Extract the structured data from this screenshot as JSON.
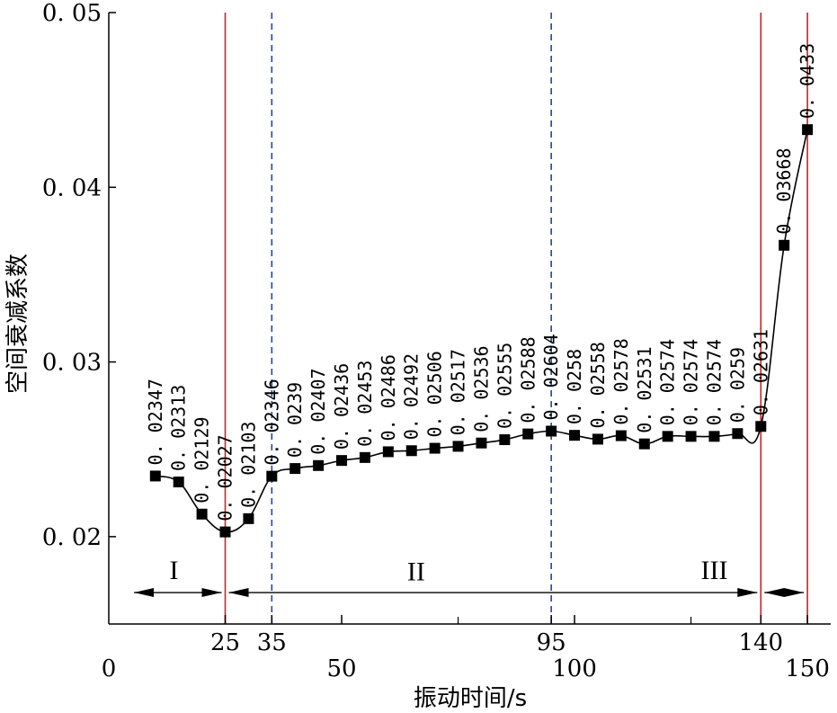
{
  "chart_data": {
    "type": "line",
    "title": "",
    "xlabel": "振动时间/s",
    "ylabel": "空间衰减系数",
    "xlim": [
      0,
      155
    ],
    "ylim": [
      0.015,
      0.05
    ],
    "grid": false,
    "x_ticks": [
      {
        "value": 0,
        "label": "0",
        "row": "lower"
      },
      {
        "value": 25,
        "label": "25",
        "row": "upper"
      },
      {
        "value": 35,
        "label": "35",
        "row": "upper"
      },
      {
        "value": 50,
        "label": "50",
        "row": "lower"
      },
      {
        "value": 95,
        "label": "95",
        "row": "upper"
      },
      {
        "value": 100,
        "label": "100",
        "row": "lower"
      },
      {
        "value": 140,
        "label": "140",
        "row": "upper"
      },
      {
        "value": 150,
        "label": "150",
        "row": "lower"
      }
    ],
    "x_minor_ticks": [
      75,
      125
    ],
    "y_ticks": [
      {
        "value": 0.02,
        "label": "0. 02"
      },
      {
        "value": 0.03,
        "label": "0. 03"
      },
      {
        "value": 0.04,
        "label": "0. 04"
      },
      {
        "value": 0.05,
        "label": "0. 05"
      }
    ],
    "series": [
      {
        "points": [
          {
            "x": 10,
            "y": 0.02347,
            "label": "0. 02347"
          },
          {
            "x": 15,
            "y": 0.02313,
            "label": "0. 02313"
          },
          {
            "x": 20,
            "y": 0.02129,
            "label": "0. 02129"
          },
          {
            "x": 25,
            "y": 0.02027,
            "label": "0. 02027"
          },
          {
            "x": 30,
            "y": 0.02103,
            "label": "0. 02103"
          },
          {
            "x": 35,
            "y": 0.02346,
            "label": "0. 02346"
          },
          {
            "x": 40,
            "y": 0.0239,
            "label": "0. 0239"
          },
          {
            "x": 45,
            "y": 0.02407,
            "label": "0. 02407"
          },
          {
            "x": 50,
            "y": 0.02436,
            "label": "0. 02436"
          },
          {
            "x": 55,
            "y": 0.02453,
            "label": "0. 02453"
          },
          {
            "x": 60,
            "y": 0.02486,
            "label": "0. 02486"
          },
          {
            "x": 65,
            "y": 0.02492,
            "label": "0. 02492"
          },
          {
            "x": 70,
            "y": 0.02506,
            "label": "0. 02506"
          },
          {
            "x": 75,
            "y": 0.02517,
            "label": "0. 02517"
          },
          {
            "x": 80,
            "y": 0.02536,
            "label": "0. 02536"
          },
          {
            "x": 85,
            "y": 0.02555,
            "label": "0. 02555"
          },
          {
            "x": 90,
            "y": 0.02588,
            "label": "0. 02588"
          },
          {
            "x": 95,
            "y": 0.02604,
            "label": "0. 02604"
          },
          {
            "x": 100,
            "y": 0.0258,
            "label": "0. 0258"
          },
          {
            "x": 105,
            "y": 0.02558,
            "label": "0. 02558"
          },
          {
            "x": 110,
            "y": 0.02578,
            "label": "0. 02578"
          },
          {
            "x": 115,
            "y": 0.02531,
            "label": "0. 02531"
          },
          {
            "x": 120,
            "y": 0.02574,
            "label": "0. 02574"
          },
          {
            "x": 125,
            "y": 0.02574,
            "label": "0. 02574"
          },
          {
            "x": 130,
            "y": 0.02574,
            "label": "0. 02574"
          },
          {
            "x": 135,
            "y": 0.0259,
            "label": "0. 0259"
          },
          {
            "x": 140,
            "y": 0.02631,
            "label": "0. 02631"
          },
          {
            "x": 145,
            "y": 0.03668,
            "label": "0. 03668"
          },
          {
            "x": 150,
            "y": 0.0433,
            "label": "0. 0433"
          }
        ],
        "color": "#000000",
        "marker": "square"
      }
    ],
    "vertical_lines": [
      {
        "x": 25,
        "color": "#cc2222",
        "style": "solid"
      },
      {
        "x": 35,
        "color": "#2244aa",
        "style": "dashed"
      },
      {
        "x": 95,
        "color": "#2244aa",
        "style": "dashed"
      },
      {
        "x": 140,
        "color": "#cc2222",
        "style": "solid"
      },
      {
        "x": 150,
        "color": "#cc2222",
        "style": "solid"
      }
    ],
    "regions": [
      {
        "label": "I",
        "x_start": 0,
        "x_end": 25,
        "arrow_y": 0.0168,
        "label_y": 0.0181
      },
      {
        "label": "II",
        "x_start": 25,
        "x_end": 140,
        "arrow_y": 0.0168,
        "label_y": 0.018
      },
      {
        "label": "III",
        "x_start": 140,
        "x_end": 150,
        "arrow_y": 0.0168,
        "label_y": 0.0181
      }
    ],
    "region_label_x": {
      "I": 14,
      "II": 66,
      "III": 130
    }
  }
}
